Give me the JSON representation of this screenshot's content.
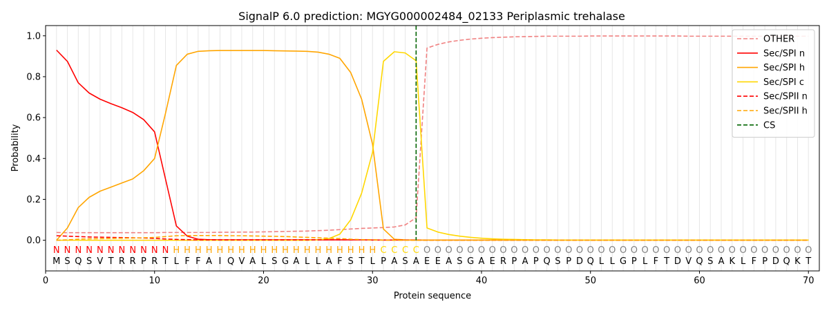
{
  "chart_data": {
    "type": "line",
    "title": "SignalP 6.0 prediction: MGYG000002484_02133 Periplasmic trehalase",
    "xlabel": "Protein sequence",
    "ylabel": "Probability",
    "xlim": [
      0,
      71
    ],
    "ylim": [
      -0.15,
      1.05
    ],
    "xticks": [
      "0",
      "10",
      "20",
      "30",
      "40",
      "50",
      "60",
      "70"
    ],
    "yticks": [
      "0.0",
      "0.2",
      "0.4",
      "0.6",
      "0.8",
      "1.0"
    ],
    "legend_position": "top-right",
    "sequence": [
      "M",
      "S",
      "Q",
      "S",
      "V",
      "T",
      "R",
      "R",
      "P",
      "R",
      "T",
      "L",
      "F",
      "F",
      "A",
      "I",
      "Q",
      "V",
      "A",
      "L",
      "S",
      "G",
      "A",
      "L",
      "L",
      "A",
      "F",
      "S",
      "T",
      "L",
      "P",
      "A",
      "S",
      "A",
      "E",
      "E",
      "A",
      "S",
      "G",
      "A",
      "E",
      "R",
      "P",
      "A",
      "P",
      "Q",
      "S",
      "P",
      "D",
      "Q",
      "L",
      "L",
      "G",
      "P",
      "L",
      "F",
      "T",
      "D",
      "V",
      "Q",
      "S",
      "A",
      "K",
      "L",
      "F",
      "P",
      "D",
      "Q",
      "K",
      "T"
    ],
    "labels": [
      "N",
      "N",
      "N",
      "N",
      "N",
      "N",
      "N",
      "N",
      "N",
      "N",
      "N",
      "H",
      "H",
      "H",
      "H",
      "H",
      "H",
      "H",
      "H",
      "H",
      "H",
      "H",
      "H",
      "H",
      "H",
      "H",
      "H",
      "H",
      "H",
      "H",
      "C",
      "C",
      "C",
      "C",
      "O",
      "O",
      "O",
      "O",
      "O",
      "O",
      "O",
      "O",
      "O",
      "O",
      "O",
      "O",
      "O",
      "O",
      "O",
      "O",
      "O",
      "O",
      "O",
      "O",
      "O",
      "O",
      "O",
      "O",
      "O",
      "O",
      "O",
      "O",
      "O",
      "O",
      "O",
      "O",
      "O",
      "O",
      "O",
      "O"
    ],
    "label_colors": {
      "N": "#ff0000",
      "H": "#ffa500",
      "C": "#ffd700",
      "O": "#808080"
    },
    "cleavage_site": 34,
    "series": [
      {
        "name": "OTHER",
        "color": "#f08080",
        "dash": true,
        "values": [
          0.038,
          0.037,
          0.037,
          0.037,
          0.037,
          0.037,
          0.037,
          0.037,
          0.037,
          0.037,
          0.038,
          0.038,
          0.038,
          0.038,
          0.038,
          0.039,
          0.039,
          0.04,
          0.04,
          0.041,
          0.042,
          0.043,
          0.044,
          0.045,
          0.047,
          0.049,
          0.052,
          0.055,
          0.058,
          0.06,
          0.062,
          0.065,
          0.075,
          0.11,
          0.94,
          0.958,
          0.97,
          0.978,
          0.984,
          0.988,
          0.991,
          0.993,
          0.995,
          0.996,
          0.997,
          0.998,
          0.998,
          0.998,
          0.998,
          0.999,
          0.999,
          0.999,
          0.999,
          0.999,
          0.999,
          0.999,
          0.999,
          0.999,
          0.998,
          0.998,
          0.998,
          0.998,
          0.998,
          0.998,
          0.998,
          0.998,
          0.998,
          0.998,
          0.998,
          0.998
        ]
      },
      {
        "name": "Sec/SPI n",
        "color": "#ff0000",
        "dash": false,
        "values": [
          0.93,
          0.875,
          0.77,
          0.72,
          0.69,
          0.668,
          0.648,
          0.625,
          0.59,
          0.53,
          0.3,
          0.07,
          0.02,
          0.005,
          0.003,
          0.002,
          0.002,
          0.002,
          0.002,
          0.002,
          0.002,
          0.002,
          0.002,
          0.002,
          0.002,
          0.002,
          0.002,
          0.002,
          0.002,
          0.001,
          0.001,
          0.001,
          0.001,
          0.001,
          0.001,
          0.001,
          0.001,
          0.001,
          0.001,
          0.001,
          0.001,
          0.001,
          0.001,
          0.001,
          0.001,
          0.001,
          0.001,
          0.001,
          0.001,
          0.001,
          0.001,
          0.001,
          0.001,
          0.001,
          0.001,
          0.001,
          0.001,
          0.001,
          0.001,
          0.001,
          0.001,
          0.001,
          0.001,
          0.001,
          0.001,
          0.001,
          0.001,
          0.001,
          0.001,
          0.001
        ]
      },
      {
        "name": "Sec/SPI h",
        "color": "#ffa500",
        "dash": false,
        "values": [
          0.0,
          0.06,
          0.16,
          0.21,
          0.24,
          0.26,
          0.28,
          0.3,
          0.34,
          0.4,
          0.62,
          0.855,
          0.91,
          0.924,
          0.927,
          0.928,
          0.928,
          0.928,
          0.928,
          0.928,
          0.927,
          0.926,
          0.925,
          0.924,
          0.92,
          0.91,
          0.89,
          0.82,
          0.69,
          0.47,
          0.055,
          0.005,
          0.002,
          0.001,
          0.001,
          0.001,
          0.001,
          0.001,
          0.001,
          0.001,
          0.001,
          0.001,
          0.001,
          0.001,
          0.001,
          0.001,
          0.001,
          0.001,
          0.001,
          0.001,
          0.001,
          0.001,
          0.001,
          0.001,
          0.001,
          0.001,
          0.001,
          0.001,
          0.001,
          0.001,
          0.001,
          0.001,
          0.001,
          0.001,
          0.001,
          0.001,
          0.001,
          0.001,
          0.001,
          0.001
        ]
      },
      {
        "name": "Sec/SPI c",
        "color": "#ffd700",
        "dash": false,
        "values": [
          0.0,
          0.0,
          0.0,
          0.0,
          0.0,
          0.0,
          0.0,
          0.0,
          0.0,
          0.0,
          0.0,
          0.0,
          0.0,
          0.0,
          0.0,
          0.0,
          0.0,
          0.0,
          0.0,
          0.0,
          0.0,
          0.0,
          0.0,
          0.0,
          0.002,
          0.008,
          0.03,
          0.1,
          0.23,
          0.43,
          0.875,
          0.922,
          0.916,
          0.878,
          0.06,
          0.04,
          0.028,
          0.02,
          0.014,
          0.01,
          0.007,
          0.005,
          0.004,
          0.003,
          0.002,
          0.002,
          0.001,
          0.001,
          0.001,
          0.001,
          0.001,
          0.001,
          0.001,
          0.001,
          0.001,
          0.001,
          0.001,
          0.001,
          0.001,
          0.001,
          0.001,
          0.001,
          0.001,
          0.001,
          0.001,
          0.001,
          0.001,
          0.001,
          0.001,
          0.001
        ]
      },
      {
        "name": "Sec/SPII n",
        "color": "#ff0000",
        "dash": true,
        "values": [
          0.022,
          0.02,
          0.018,
          0.016,
          0.015,
          0.014,
          0.013,
          0.012,
          0.011,
          0.009,
          0.006,
          0.004,
          0.003,
          0.002,
          0.002,
          0.002,
          0.002,
          0.002,
          0.002,
          0.002,
          0.002,
          0.002,
          0.002,
          0.002,
          0.002,
          0.002,
          0.002,
          0.002,
          0.002,
          0.002,
          0.001,
          0.001,
          0.001,
          0.001,
          0.0,
          0.0,
          0.0,
          0.0,
          0.0,
          0.0,
          0.0,
          0.0,
          0.0,
          0.0,
          0.0,
          0.0,
          0.0,
          0.0,
          0.0,
          0.0,
          0.0,
          0.0,
          0.0,
          0.0,
          0.0,
          0.0,
          0.0,
          0.0,
          0.0,
          0.0,
          0.0,
          0.0,
          0.0,
          0.0,
          0.0,
          0.0,
          0.0,
          0.0,
          0.0,
          0.0
        ]
      },
      {
        "name": "Sec/SPII h",
        "color": "#ffa500",
        "dash": true,
        "values": [
          0.0,
          0.002,
          0.005,
          0.007,
          0.008,
          0.009,
          0.01,
          0.011,
          0.012,
          0.014,
          0.018,
          0.022,
          0.023,
          0.023,
          0.023,
          0.023,
          0.022,
          0.022,
          0.021,
          0.02,
          0.019,
          0.018,
          0.016,
          0.014,
          0.012,
          0.01,
          0.008,
          0.005,
          0.003,
          0.002,
          0.001,
          0.0,
          0.0,
          0.0,
          0.0,
          0.0,
          0.0,
          0.0,
          0.0,
          0.0,
          0.0,
          0.0,
          0.0,
          0.0,
          0.0,
          0.0,
          0.0,
          0.0,
          0.0,
          0.0,
          0.0,
          0.0,
          0.0,
          0.0,
          0.0,
          0.0,
          0.0,
          0.0,
          0.0,
          0.0,
          0.0,
          0.0,
          0.0,
          0.0,
          0.0,
          0.0,
          0.0,
          0.0,
          0.0,
          0.0
        ]
      }
    ],
    "cs_legend": {
      "name": "CS",
      "color": "#006400"
    }
  }
}
